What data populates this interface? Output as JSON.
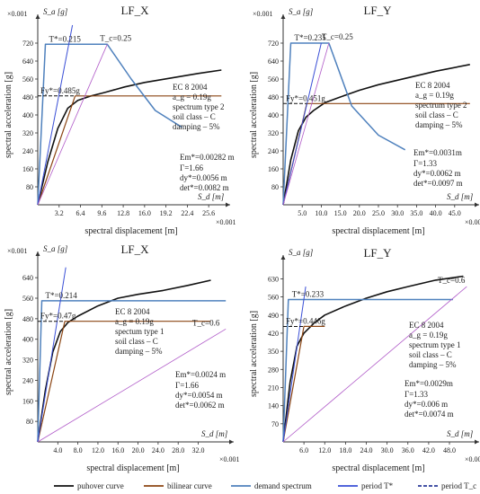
{
  "chart_data": [
    {
      "type": "line",
      "title": "LF_X",
      "xlabel": "spectral displacement [m]",
      "ylabel": "spectral acceleration [g]",
      "x_axis_tag": "S_d [m]",
      "y_axis_tag": "S_a [g]",
      "x_scale_label": "×0.001",
      "y_scale_label": "×0.001",
      "xlim": [
        0,
        28
      ],
      "ylim": [
        0,
        800
      ],
      "xticks": [
        3.2,
        6.4,
        9.6,
        12.8,
        16.0,
        19.2,
        22.4,
        25.6
      ],
      "yticks": [
        80,
        160,
        240,
        320,
        400,
        480,
        560,
        640,
        720
      ],
      "series": [
        {
          "name": "puhover curve",
          "x": [
            0,
            1.5,
            3.0,
            4.5,
            6.0,
            8.0,
            10.0,
            13.0,
            16.0,
            20.0,
            24.0,
            27.5
          ],
          "y": [
            0,
            190,
            340,
            430,
            465,
            485,
            500,
            525,
            545,
            565,
            585,
            600
          ]
        },
        {
          "name": "bilinear curve",
          "x": [
            0,
            5.6,
            27.5
          ],
          "y": [
            0,
            485,
            485
          ]
        },
        {
          "name": "demand spectrum",
          "x": [
            0,
            1.15,
            10.4,
            14.0,
            17.6,
            21.6
          ],
          "y": [
            0,
            715,
            715,
            560,
            420,
            345
          ]
        },
        {
          "name": "period T*",
          "x": [
            0,
            5.2
          ],
          "y": [
            0,
            800
          ]
        },
        {
          "name": "period Tc",
          "x": [
            0,
            10.4
          ],
          "y": [
            0,
            715
          ]
        }
      ],
      "annotations": {
        "tstar": "T*=0.215",
        "tc": "T_c=0.25",
        "fy": "Fy*=0.485g",
        "code": "EC 8 2004",
        "ag": "a_g = 0.19g",
        "spectrum": "spectrum type 2",
        "soil": "soil class – C",
        "damping": "damping – 5%",
        "em": "Em*=0.00282 m",
        "gamma": "Γ=1.66",
        "dy": "dy*=0.0056 m",
        "det": "det*=0.0082 m"
      }
    },
    {
      "type": "line",
      "title": "LF_Y",
      "xlabel": "spectral displacement [m]",
      "ylabel": "spectral acceleration [g]",
      "x_axis_tag": "S_d [m]",
      "y_axis_tag": "S_a [g]",
      "x_scale_label": "×0.001",
      "y_scale_label": "×0.001",
      "xlim": [
        0,
        50
      ],
      "ylim": [
        0,
        800
      ],
      "xticks": [
        5.0,
        10.0,
        15.0,
        20.0,
        25.0,
        30.0,
        35.0,
        40.0,
        45.0
      ],
      "yticks": [
        80,
        160,
        240,
        320,
        400,
        480,
        560,
        640,
        720
      ],
      "series": [
        {
          "name": "puhover curve",
          "x": [
            0,
            2.0,
            4.0,
            6.0,
            8.0,
            11.0,
            15.0,
            20.0,
            25.0,
            30.0,
            40.0,
            49.0
          ],
          "y": [
            0,
            200,
            330,
            390,
            420,
            455,
            480,
            510,
            535,
            555,
            595,
            625
          ]
        },
        {
          "name": "bilinear curve",
          "x": [
            0,
            6.2,
            49.0
          ],
          "y": [
            0,
            451,
            451
          ]
        },
        {
          "name": "demand spectrum",
          "x": [
            0,
            2.0,
            12.0,
            18.0,
            25.0,
            32.0
          ],
          "y": [
            0,
            720,
            720,
            440,
            310,
            245
          ]
        },
        {
          "name": "period T*",
          "x": [
            0,
            10.0
          ],
          "y": [
            0,
            720
          ]
        },
        {
          "name": "period Tc",
          "x": [
            0,
            12.0
          ],
          "y": [
            0,
            720
          ]
        }
      ],
      "annotations": {
        "tstar": "T*=0.235",
        "tc": "T_c=0.25",
        "fy": "Fy*=0.451g",
        "code": "EC 8 2004",
        "ag": "a_g = 0.19g",
        "spectrum": "spectrum type 2",
        "soil": "soil class – C",
        "damping": "damping – 5%",
        "em": "Em*=0.0031m",
        "gamma": "Γ=1.33",
        "dy": "dy*=0.0062 m",
        "det": "det*=0.0097 m"
      }
    },
    {
      "type": "line",
      "title": "LF_X",
      "xlabel": "spectral displacement [m]",
      "ylabel": "spectral acceleration [g]",
      "x_axis_tag": "S_d [m]",
      "y_axis_tag": "S_a [g]",
      "x_scale_label": "×0.001",
      "y_scale_label": "×0.001",
      "xlim": [
        0,
        38
      ],
      "ylim": [
        0,
        700
      ],
      "xticks": [
        4.0,
        8.0,
        12.0,
        16.0,
        20.0,
        24.0,
        28.0,
        32.0
      ],
      "yticks": [
        80,
        160,
        240,
        320,
        400,
        480,
        560,
        640
      ],
      "series": [
        {
          "name": "puhover curve",
          "x": [
            0,
            1.5,
            3.0,
            4.5,
            6.0,
            8.0,
            12.0,
            16.0,
            20.0,
            25.0,
            30.0,
            34.5
          ],
          "y": [
            0,
            200,
            350,
            430,
            465,
            490,
            530,
            560,
            575,
            590,
            610,
            630
          ]
        },
        {
          "name": "bilinear curve",
          "x": [
            0,
            5.4,
            34.5
          ],
          "y": [
            0,
            470,
            470
          ]
        },
        {
          "name": "demand spectrum",
          "x": [
            0,
            0.8,
            6.0,
            37.5
          ],
          "y": [
            0,
            550,
            550,
            550
          ]
        },
        {
          "name": "period T*",
          "x": [
            0,
            5.6
          ],
          "y": [
            0,
            680
          ]
        },
        {
          "name": "period Tc",
          "x": [
            0,
            37.5
          ],
          "y": [
            0,
            440
          ]
        }
      ],
      "annotations": {
        "tstar": "T*=0.214",
        "tc": "T_c=0.6",
        "fy": "Fy*=0.47g",
        "code": "EC 8 2004",
        "ag": "a_g = 0.19g",
        "spectrum": "spectum type 1",
        "soil": "soil class – C",
        "damping": "damping – 5%",
        "em": "Em*=0.0024 m",
        "gamma": "Γ=1.66",
        "dy": "dy*=0.0054 m",
        "det": "det*=0.0062 m"
      }
    },
    {
      "type": "line",
      "title": "LF_Y",
      "xlabel": "spectral displacement [m]",
      "ylabel": "spectral acceleration [g]",
      "x_axis_tag": "S_d [m]",
      "y_axis_tag": "S_a [g]",
      "x_scale_label": "×0.001",
      "y_scale_label": "",
      "xlim": [
        0,
        55
      ],
      "ylim": [
        0,
        680
      ],
      "xticks": [
        6.0,
        12.0,
        18.0,
        24.0,
        30.0,
        36.0,
        42.0,
        48.0
      ],
      "yticks": [
        70,
        140,
        210,
        280,
        350,
        420,
        490,
        560,
        630
      ],
      "series": [
        {
          "name": "puhover curve",
          "x": [
            0,
            2.0,
            4.0,
            6.0,
            9.0,
            12.0,
            18.0,
            24.0,
            30.0,
            36.0,
            44.0,
            52.0
          ],
          "y": [
            0,
            230,
            370,
            420,
            460,
            490,
            525,
            555,
            580,
            600,
            625,
            640
          ]
        },
        {
          "name": "bilinear curve",
          "x": [
            0,
            6.0,
            12.0
          ],
          "y": [
            0,
            446,
            446
          ]
        },
        {
          "name": "demand spectrum",
          "x": [
            0,
            1.5,
            6.0,
            49.0
          ],
          "y": [
            0,
            550,
            550,
            550
          ]
        },
        {
          "name": "period T*",
          "x": [
            0,
            6.5
          ],
          "y": [
            0,
            600
          ]
        },
        {
          "name": "period Tc",
          "x": [
            0,
            53.0
          ],
          "y": [
            0,
            600
          ]
        }
      ],
      "annotations": {
        "tstar": "T*=0.233",
        "tc": "T_c=0.6",
        "fy": "Fy*=0.446g",
        "code": "EC 8 2004",
        "ag": "a_g = 0.19g",
        "spectrum": "spectrum type 1",
        "soil": "soil class – C",
        "damping": "damping – 5%",
        "em": "Em*=0.0029m",
        "gamma": "Γ=1.33",
        "dy": "dy*=0.006 m",
        "det": "det*=0.0074 m"
      }
    }
  ],
  "legend": {
    "items": [
      {
        "label": "puhover curve",
        "color": "#111111",
        "dash": false
      },
      {
        "label": "bilinear curve",
        "color": "#8b4513",
        "dash": false
      },
      {
        "label": "demand spectrum",
        "color": "#4f81bd",
        "dash": false
      },
      {
        "label": "period T*",
        "color": "#3a4fd6",
        "dash": false
      },
      {
        "label": "period T_c",
        "color": "#2b3b9a",
        "dash": true
      }
    ]
  },
  "colors": {
    "pushover": "#111111",
    "bilinear": "#8b4513",
    "demand": "#4f81bd",
    "tstar": "#3a4fd6",
    "tc": "#b05ac8",
    "axis": "#333333",
    "tick_label": "#333333"
  }
}
